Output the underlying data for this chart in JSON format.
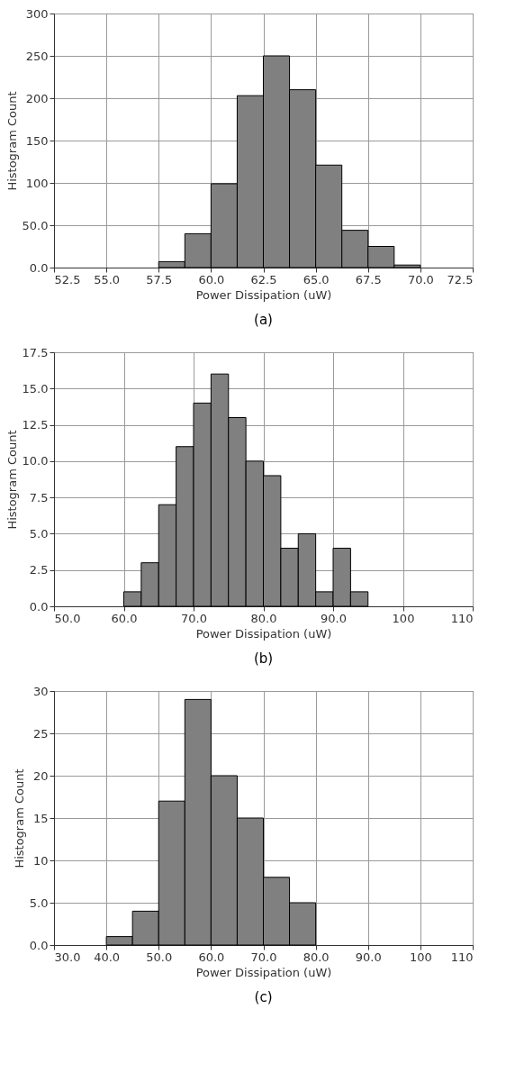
{
  "chart_data": [
    {
      "type": "histogram",
      "xlabel": "Power Dissipation (uW)",
      "ylabel": "Histogram Count",
      "annotations": [
        "(a)"
      ],
      "color": "#808080",
      "bins": [
        57.5,
        58.75,
        60.0,
        61.25,
        62.5,
        63.75,
        65.0,
        66.25,
        67.5,
        68.75,
        70.0
      ],
      "values": [
        7,
        40,
        99,
        203,
        250,
        210,
        121,
        44,
        25,
        3
      ],
      "xlim": [
        52.5,
        72.5
      ],
      "xticks": [
        52.5,
        {
          "value": 55,
          "label": "55.0"
        },
        57.5,
        {
          "value": 60,
          "label": "60.0"
        },
        62.5,
        {
          "value": 65,
          "label": "65.0"
        },
        67.5,
        {
          "value": 70,
          "label": "70.0"
        },
        72.5
      ],
      "ylim": [
        0,
        300
      ],
      "yticks": [
        {
          "value": 0,
          "label": "0.0"
        },
        {
          "value": 50,
          "label": "50.0"
        },
        100,
        150,
        200,
        250,
        300
      ],
      "grid": true
    },
    {
      "type": "histogram",
      "xlabel": "Power Dissipation (uW)",
      "ylabel": "Histogram Count",
      "annotations": [
        "(b)"
      ],
      "color": "#808080",
      "bins": [
        60,
        62.5,
        65,
        67.5,
        70,
        72.5,
        75,
        77.5,
        80,
        82.5,
        85,
        87.5,
        90,
        92.5,
        95
      ],
      "values": [
        1,
        3,
        7,
        11,
        14,
        16,
        13,
        10,
        9,
        4,
        5,
        1,
        4,
        1
      ],
      "xlim": [
        50,
        110
      ],
      "xticks": [
        {
          "value": 50,
          "label": "50.0"
        },
        {
          "value": 60,
          "label": "60.0"
        },
        {
          "value": 70,
          "label": "70.0"
        },
        {
          "value": 80,
          "label": "80.0"
        },
        {
          "value": 90,
          "label": "90.0"
        },
        100,
        110
      ],
      "ylim": [
        0,
        17.5
      ],
      "yticks": [
        {
          "value": 0,
          "label": "0.0"
        },
        2.5,
        {
          "value": 5,
          "label": "5.0"
        },
        7.5,
        {
          "value": 10,
          "label": "10.0"
        },
        12.5,
        {
          "value": 15,
          "label": "15.0"
        },
        17.5
      ],
      "grid": true
    },
    {
      "type": "histogram",
      "xlabel": "Power Dissipation (uW)",
      "ylabel": "Histogram Count",
      "annotations": [
        "(c)"
      ],
      "color": "#808080",
      "bins": [
        40,
        45,
        50,
        55,
        60,
        65,
        70,
        75,
        80
      ],
      "values": [
        1,
        4,
        17,
        29,
        20,
        15,
        8,
        5
      ],
      "xlim": [
        30,
        110
      ],
      "xticks": [
        {
          "value": 30,
          "label": "30.0"
        },
        {
          "value": 40,
          "label": "40.0"
        },
        {
          "value": 50,
          "label": "50.0"
        },
        {
          "value": 60,
          "label": "60.0"
        },
        {
          "value": 70,
          "label": "70.0"
        },
        {
          "value": 80,
          "label": "80.0"
        },
        {
          "value": 90,
          "label": "90.0"
        },
        100,
        110
      ],
      "ylim": [
        0,
        30
      ],
      "yticks": [
        {
          "value": 0,
          "label": "0.0"
        },
        {
          "value": 5,
          "label": "5.0"
        },
        10,
        15,
        20,
        25,
        30
      ],
      "grid": true
    }
  ]
}
